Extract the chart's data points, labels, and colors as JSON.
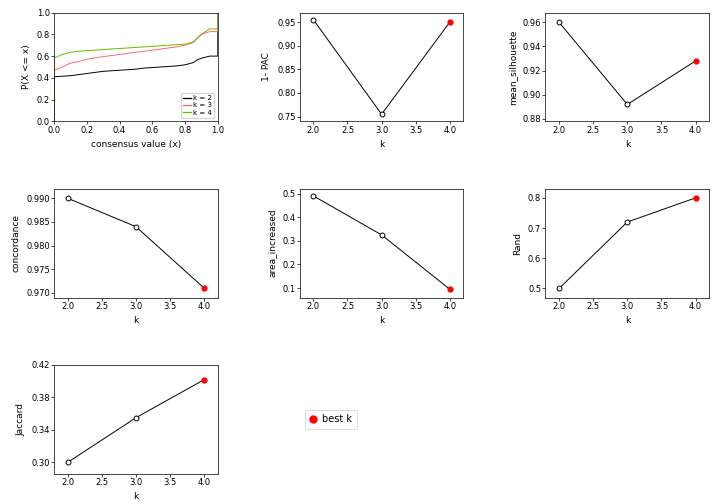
{
  "ecdf": {
    "k2": {
      "x": [
        0.0,
        0.0,
        0.05,
        0.1,
        0.15,
        0.2,
        0.25,
        0.3,
        0.35,
        0.4,
        0.45,
        0.5,
        0.55,
        0.6,
        0.65,
        0.7,
        0.75,
        0.8,
        0.85,
        0.88,
        0.9,
        0.95,
        1.0,
        1.0
      ],
      "y": [
        0.0,
        0.41,
        0.415,
        0.42,
        0.43,
        0.44,
        0.45,
        0.46,
        0.465,
        0.47,
        0.475,
        0.48,
        0.49,
        0.495,
        0.5,
        0.505,
        0.51,
        0.52,
        0.54,
        0.57,
        0.58,
        0.6,
        0.6,
        1.0
      ],
      "color": "#000000"
    },
    "k3": {
      "x": [
        0.0,
        0.0,
        0.05,
        0.1,
        0.15,
        0.2,
        0.25,
        0.3,
        0.35,
        0.4,
        0.45,
        0.5,
        0.55,
        0.6,
        0.65,
        0.7,
        0.75,
        0.8,
        0.85,
        0.88,
        0.9,
        0.95,
        1.0,
        1.0
      ],
      "y": [
        0.0,
        0.47,
        0.5,
        0.535,
        0.55,
        0.57,
        0.585,
        0.595,
        0.605,
        0.615,
        0.625,
        0.635,
        0.645,
        0.655,
        0.665,
        0.675,
        0.685,
        0.7,
        0.725,
        0.775,
        0.8,
        0.825,
        0.825,
        1.0
      ],
      "color": "#FF6666"
    },
    "k4": {
      "x": [
        0.0,
        0.0,
        0.05,
        0.1,
        0.15,
        0.2,
        0.25,
        0.3,
        0.35,
        0.4,
        0.45,
        0.5,
        0.55,
        0.6,
        0.65,
        0.7,
        0.75,
        0.8,
        0.85,
        0.88,
        0.9,
        0.95,
        1.0,
        1.0
      ],
      "y": [
        0.0,
        0.58,
        0.615,
        0.635,
        0.645,
        0.65,
        0.655,
        0.66,
        0.665,
        0.67,
        0.675,
        0.68,
        0.685,
        0.69,
        0.695,
        0.7,
        0.705,
        0.71,
        0.73,
        0.77,
        0.8,
        0.85,
        0.85,
        1.0
      ],
      "color": "#66BB00"
    }
  },
  "pac": {
    "k": [
      2,
      3,
      4
    ],
    "y": [
      0.955,
      0.755,
      0.95
    ],
    "best_k": 4,
    "ylim": [
      0.74,
      0.97
    ],
    "yticks": [
      0.75,
      0.8,
      0.85,
      0.9,
      0.95
    ],
    "ylabel": "1- PAC"
  },
  "silhouette": {
    "k": [
      2,
      3,
      4
    ],
    "y": [
      0.96,
      0.892,
      0.928
    ],
    "best_k": 4,
    "ylim": [
      0.878,
      0.968
    ],
    "yticks": [
      0.88,
      0.9,
      0.92,
      0.94,
      0.96
    ],
    "ylabel": "mean_silhouette"
  },
  "concordance": {
    "k": [
      2,
      3,
      4
    ],
    "y": [
      0.99,
      0.984,
      0.971
    ],
    "best_k": 4,
    "ylim": [
      0.969,
      0.992
    ],
    "yticks": [
      0.97,
      0.975,
      0.98,
      0.985,
      0.99
    ],
    "ylabel": "concordance"
  },
  "area_increased": {
    "k": [
      2,
      3,
      4
    ],
    "y": [
      0.49,
      0.325,
      0.095
    ],
    "best_k": 4,
    "ylim": [
      0.06,
      0.52
    ],
    "yticks": [
      0.1,
      0.2,
      0.3,
      0.4,
      0.5
    ],
    "ylabel": "area_increased"
  },
  "rand": {
    "k": [
      2,
      3,
      4
    ],
    "y": [
      0.5,
      0.72,
      0.8
    ],
    "best_k": 4,
    "ylim": [
      0.47,
      0.83
    ],
    "yticks": [
      0.5,
      0.6,
      0.7,
      0.8
    ],
    "ylabel": "Rand"
  },
  "jaccard": {
    "k": [
      2,
      3,
      4
    ],
    "y": [
      0.3,
      0.355,
      0.402
    ],
    "best_k": 4,
    "ylim": [
      0.286,
      0.415
    ],
    "yticks": [
      0.3,
      0.34,
      0.38,
      0.42
    ],
    "ylabel": "Jaccard"
  }
}
